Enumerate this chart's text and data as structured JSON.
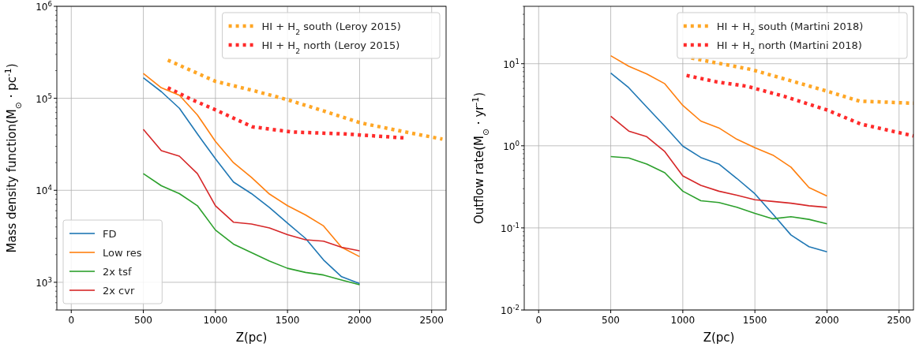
{
  "chart_data": [
    {
      "type": "line",
      "xlabel": "Z(pc)",
      "ylabel": "Mass density function(M$_{⊙}$ · pc$^{-1}$)",
      "log": "y",
      "grid": true,
      "legend": "bottom left",
      "xlim": [
        -100,
        2600
      ],
      "ylim": [
        500,
        1000000
      ],
      "xticks": [
        0,
        500,
        1000,
        1500,
        2000,
        2500
      ],
      "yticks": [
        {
          "value": 1000,
          "label": "10$^{3}$"
        },
        {
          "value": 10000,
          "label": "10$^{4}$"
        },
        {
          "value": 100000,
          "label": "10$^{5}$"
        },
        {
          "value": 1000000,
          "label": "10$^{6}$"
        }
      ],
      "x": [
        500,
        625,
        750,
        875,
        1000,
        1125,
        1250,
        1375,
        1500,
        1625,
        1750,
        1875,
        2000
      ],
      "series": [
        {
          "name": "HI + H$_{2}$ south (Leroy 2015)",
          "color": "#ffa726",
          "line_style": "dotted",
          "x": [
            670,
            1000,
            1275,
            1495,
            1750,
            2007,
            2320,
            2575
          ],
          "values": [
            260000,
            153000,
            120000,
            97000,
            73000,
            54000,
            43000,
            36000
          ]
        },
        {
          "name": "HI + H$_{2}$ north (Leroy 2015)",
          "color": "#ff2b2b",
          "line_style": "dotted",
          "x": [
            670,
            835,
            1000,
            1256,
            1531,
            1897,
            2320
          ],
          "values": [
            130000,
            97000,
            75000,
            49000,
            43000,
            41000,
            37000
          ]
        },
        {
          "name": "FD",
          "color": "#1f77b4",
          "values": [
            167000,
            118000,
            78000,
            41000,
            22000,
            12300,
            9200,
            6500,
            4400,
            3000,
            1750,
            1150,
            970
          ]
        },
        {
          "name": "Low res",
          "color": "#ff7f0e",
          "values": [
            186000,
            130000,
            108000,
            66000,
            34000,
            20000,
            13800,
            9100,
            6800,
            5400,
            4100,
            2400,
            1900
          ]
        },
        {
          "name": "2x tsf",
          "color": "#2ca02c",
          "values": [
            15200,
            11200,
            9200,
            6800,
            3700,
            2600,
            2100,
            1700,
            1420,
            1280,
            1200,
            1060,
            940
          ]
        },
        {
          "name": "2x cvr",
          "color": "#d62728",
          "values": [
            46000,
            27000,
            23500,
            15200,
            6800,
            4500,
            4300,
            3900,
            3300,
            2900,
            2800,
            2400,
            2200
          ]
        }
      ]
    },
    {
      "type": "line",
      "xlabel": "Z(pc)",
      "ylabel": "Outflow rate(M$_{⊙}$ · yr$^{-1}$)",
      "log": "y",
      "grid": true,
      "legend": "top right",
      "xlim": [
        -100,
        2600
      ],
      "ylim": [
        0.01,
        50
      ],
      "xticks": [
        0,
        500,
        1000,
        1500,
        2000,
        2500
      ],
      "yticks": [
        {
          "value": 0.01,
          "label": "10$^{-2}$"
        },
        {
          "value": 0.1,
          "label": "10$^{-1}$"
        },
        {
          "value": 1,
          "label": "10$^{0}$"
        },
        {
          "value": 10,
          "label": "10$^{1}$"
        }
      ],
      "x": [
        500,
        625,
        750,
        875,
        1000,
        1125,
        1250,
        1375,
        1500,
        1625,
        1750,
        1875,
        2000
      ],
      "series": [
        {
          "name": "HI + H$_{2}$ south (Martini 2018)",
          "color": "#ffa726",
          "line_style": "dotted",
          "x": [
            1059,
            1264,
            1474,
            1749,
            2005,
            2225,
            2600
          ],
          "values": [
            11.7,
            10,
            8.5,
            6.2,
            4.6,
            3.5,
            3.3
          ]
        },
        {
          "name": "HI + H$_{2}$ north (Martini 2018)",
          "color": "#ff2b2b",
          "line_style": "dotted",
          "x": [
            1026,
            1236,
            1447,
            1703,
            1996,
            2234,
            2600
          ],
          "values": [
            7.2,
            6.0,
            5.3,
            4.0,
            2.75,
            1.84,
            1.32
          ]
        },
        {
          "color": "#1f77b4",
          "values": [
            7.7,
            5.1,
            2.96,
            1.73,
            0.99,
            0.72,
            0.6,
            0.4,
            0.26,
            0.147,
            0.082,
            0.059,
            0.051
          ]
        },
        {
          "color": "#ff7f0e",
          "values": [
            12.5,
            9.3,
            7.5,
            5.7,
            3.1,
            2.0,
            1.65,
            1.2,
            0.95,
            0.77,
            0.55,
            0.31,
            0.245
          ]
        },
        {
          "color": "#2ca02c",
          "values": [
            0.74,
            0.71,
            0.6,
            0.47,
            0.28,
            0.214,
            0.204,
            0.178,
            0.15,
            0.129,
            0.137,
            0.127,
            0.112
          ]
        },
        {
          "color": "#d62728",
          "values": [
            2.29,
            1.51,
            1.29,
            0.85,
            0.43,
            0.33,
            0.28,
            0.25,
            0.22,
            0.21,
            0.2,
            0.186,
            0.178
          ]
        }
      ]
    }
  ]
}
